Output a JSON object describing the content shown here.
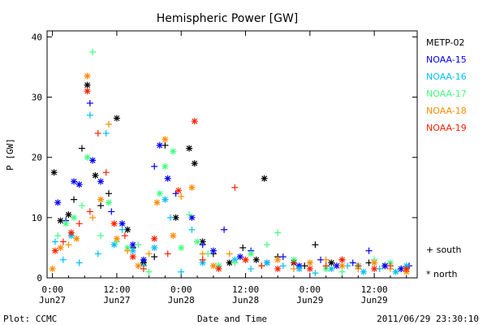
{
  "chart_data": {
    "type": "scatter",
    "title": "Hemispheric Power [GW]",
    "xlabel": "Date and Time",
    "ylabel": "P [GW]",
    "ylim": [
      0,
      41
    ],
    "xlim_hours": [
      -1,
      68
    ],
    "yticks": [
      0,
      10,
      20,
      30,
      40
    ],
    "xticks": [
      {
        "h": 0,
        "time": "0:00",
        "date": "Jun27"
      },
      {
        "h": 12,
        "time": "12:00",
        "date": "Jun27"
      },
      {
        "h": 24,
        "time": "0:00",
        "date": "Jun28"
      },
      {
        "h": 36,
        "time": "12:00",
        "date": "Jun28"
      },
      {
        "h": 48,
        "time": "0:00",
        "date": "Jun29"
      },
      {
        "h": 60,
        "time": "12:00",
        "date": "Jun29"
      }
    ],
    "marker_legend": [
      {
        "marker": "+",
        "label": "+ south"
      },
      {
        "marker": "*",
        "label": "* north"
      }
    ],
    "series": [
      {
        "name": "METP-02",
        "color": "#000000",
        "points": [
          [
            0.3,
            17.5,
            "*"
          ],
          [
            1.5,
            9.5,
            "*"
          ],
          [
            3,
            10.5,
            "*"
          ],
          [
            4,
            13,
            "+"
          ],
          [
            5.5,
            21.5,
            "+"
          ],
          [
            6.5,
            32,
            "*"
          ],
          [
            8,
            17,
            "*"
          ],
          [
            9,
            12,
            "+"
          ],
          [
            10.5,
            14,
            "+"
          ],
          [
            12,
            26.5,
            "*"
          ],
          [
            14,
            8,
            "*"
          ],
          [
            15,
            5,
            "+"
          ],
          [
            17,
            2.5,
            "*"
          ],
          [
            19,
            3.5,
            "+"
          ],
          [
            21,
            22,
            "+"
          ],
          [
            23,
            10,
            "*"
          ],
          [
            25.5,
            21.5,
            "*"
          ],
          [
            26.5,
            19,
            "*"
          ],
          [
            28,
            6,
            "*"
          ],
          [
            30,
            4,
            "+"
          ],
          [
            33,
            2.5,
            "*"
          ],
          [
            35.5,
            5,
            "+"
          ],
          [
            38,
            3,
            "*"
          ],
          [
            39.5,
            16.5,
            "*"
          ],
          [
            42,
            3.5,
            "+"
          ],
          [
            45,
            2.5,
            "*"
          ],
          [
            47,
            2,
            "+"
          ],
          [
            49,
            5.5,
            "+"
          ],
          [
            52,
            2.5,
            "*"
          ],
          [
            54,
            3,
            "+"
          ],
          [
            57,
            2,
            "*"
          ],
          [
            59,
            2.5,
            "+"
          ],
          [
            62,
            2,
            "*"
          ],
          [
            65,
            1.5,
            "+"
          ]
        ]
      },
      {
        "name": "NOAA-15",
        "color": "#0000ff",
        "points": [
          [
            1,
            12.5,
            "*"
          ],
          [
            2.5,
            9.5,
            "+"
          ],
          [
            4,
            16,
            "*"
          ],
          [
            5,
            15.5,
            "*"
          ],
          [
            7,
            29,
            "+"
          ],
          [
            7.5,
            19.5,
            "*"
          ],
          [
            9,
            16,
            "*"
          ],
          [
            11,
            11,
            "+"
          ],
          [
            13,
            9,
            "*"
          ],
          [
            15,
            5.5,
            "*"
          ],
          [
            17,
            3,
            "*"
          ],
          [
            19,
            18.5,
            "+"
          ],
          [
            20,
            22,
            "*"
          ],
          [
            21.5,
            16.5,
            "*"
          ],
          [
            23,
            14,
            "+"
          ],
          [
            26,
            10,
            "*"
          ],
          [
            28,
            5.5,
            "+"
          ],
          [
            30,
            4.5,
            "*"
          ],
          [
            32,
            8,
            "+"
          ],
          [
            35,
            3.5,
            "*"
          ],
          [
            37,
            4.5,
            "+"
          ],
          [
            40,
            2.5,
            "*"
          ],
          [
            43,
            3.5,
            "+"
          ],
          [
            46,
            2,
            "*"
          ],
          [
            50,
            3,
            "+"
          ],
          [
            53,
            2,
            "*"
          ],
          [
            56,
            2.5,
            "+"
          ],
          [
            59,
            4.5,
            "+"
          ],
          [
            62,
            2,
            "*"
          ],
          [
            65,
            1.5,
            "*"
          ],
          [
            66.5,
            2,
            "+"
          ]
        ]
      },
      {
        "name": "NOAA-16",
        "color": "#00c0ff",
        "points": [
          [
            0.5,
            6,
            "+"
          ],
          [
            2,
            3,
            "+"
          ],
          [
            3.5,
            7,
            "*"
          ],
          [
            5,
            2.5,
            "+"
          ],
          [
            7,
            27,
            "+"
          ],
          [
            8.5,
            4,
            "+"
          ],
          [
            10,
            24,
            "+"
          ],
          [
            11.5,
            5.5,
            "*"
          ],
          [
            13,
            8,
            "+"
          ],
          [
            15,
            4.5,
            "*"
          ],
          [
            17,
            2,
            "+"
          ],
          [
            19,
            5,
            "*"
          ],
          [
            21,
            13,
            "*"
          ],
          [
            22,
            10,
            "+"
          ],
          [
            24,
            1,
            "+"
          ],
          [
            26,
            8,
            "+"
          ],
          [
            28,
            2.5,
            "*"
          ],
          [
            31,
            2,
            "+"
          ],
          [
            34,
            3,
            "*"
          ],
          [
            37,
            1.5,
            "+"
          ],
          [
            40,
            2.5,
            "*"
          ],
          [
            43,
            2,
            "+"
          ],
          [
            46,
            1.5,
            "*"
          ],
          [
            49,
            0.8,
            "+"
          ],
          [
            52,
            1.5,
            "*"
          ],
          [
            55,
            2,
            "+"
          ],
          [
            58,
            1,
            "*"
          ],
          [
            61,
            1.5,
            "+"
          ],
          [
            64,
            1,
            "*"
          ],
          [
            66,
            2,
            "*"
          ]
        ]
      },
      {
        "name": "NOAA-17",
        "color": "#40ff80",
        "points": [
          [
            1,
            7,
            "+"
          ],
          [
            2.5,
            9,
            "*"
          ],
          [
            4,
            10,
            "*"
          ],
          [
            5.5,
            12,
            "+"
          ],
          [
            6.5,
            20,
            "*"
          ],
          [
            7.5,
            37.5,
            "+"
          ],
          [
            9,
            7,
            "+"
          ],
          [
            10.5,
            12.5,
            "*"
          ],
          [
            12,
            6,
            "+"
          ],
          [
            14,
            5,
            "*"
          ],
          [
            16,
            5.5,
            "+"
          ],
          [
            18,
            1,
            "+"
          ],
          [
            20,
            14,
            "*"
          ],
          [
            21,
            18.5,
            "*"
          ],
          [
            22.5,
            21,
            "*"
          ],
          [
            24,
            5,
            "*"
          ],
          [
            25.5,
            10.5,
            "+"
          ],
          [
            27,
            6,
            "*"
          ],
          [
            29,
            4,
            "+"
          ],
          [
            31,
            2,
            "*"
          ],
          [
            34,
            2.5,
            "+"
          ],
          [
            37,
            4,
            "*"
          ],
          [
            40,
            5.5,
            "+"
          ],
          [
            42,
            7.5,
            "+"
          ],
          [
            45,
            3,
            "*"
          ],
          [
            48,
            2.5,
            "+"
          ],
          [
            51,
            1.5,
            "*"
          ],
          [
            54,
            1,
            "+"
          ],
          [
            57,
            2,
            "*"
          ],
          [
            60,
            3,
            "+"
          ],
          [
            63,
            2.5,
            "*"
          ],
          [
            66,
            1.5,
            "+"
          ]
        ]
      },
      {
        "name": "NOAA-18",
        "color": "#ff8c00",
        "points": [
          [
            0,
            1.5,
            "*"
          ],
          [
            1.5,
            5,
            "*"
          ],
          [
            3,
            5.5,
            "+"
          ],
          [
            4.5,
            6.5,
            "*"
          ],
          [
            6.5,
            33.5,
            "*"
          ],
          [
            7.5,
            10,
            "+"
          ],
          [
            9,
            13,
            "*"
          ],
          [
            10.5,
            25.5,
            "+"
          ],
          [
            12,
            6.5,
            "*"
          ],
          [
            14,
            4.5,
            "+"
          ],
          [
            16,
            2,
            "*"
          ],
          [
            18,
            4,
            "+"
          ],
          [
            19.5,
            12.5,
            "*"
          ],
          [
            21,
            23,
            "*"
          ],
          [
            22.5,
            7,
            "*"
          ],
          [
            24,
            13.5,
            "+"
          ],
          [
            26,
            15,
            "*"
          ],
          [
            28,
            4,
            "+"
          ],
          [
            30,
            2,
            "*"
          ],
          [
            33,
            4,
            "+"
          ],
          [
            36,
            3,
            "*"
          ],
          [
            39,
            2,
            "+"
          ],
          [
            42,
            3,
            "*"
          ],
          [
            45,
            1.5,
            "+"
          ],
          [
            48,
            2.5,
            "*"
          ],
          [
            51,
            3,
            "+"
          ],
          [
            54,
            2,
            "*"
          ],
          [
            57,
            1.5,
            "+"
          ],
          [
            60,
            2.5,
            "*"
          ],
          [
            63,
            1.5,
            "+"
          ],
          [
            66,
            1,
            "*"
          ]
        ]
      },
      {
        "name": "NOAA-19",
        "color": "#ff2000",
        "points": [
          [
            0.5,
            4.5,
            "*"
          ],
          [
            2,
            6,
            "+"
          ],
          [
            3.5,
            7.5,
            "*"
          ],
          [
            5,
            9,
            "+"
          ],
          [
            6.5,
            31,
            "*"
          ],
          [
            7,
            11,
            "+"
          ],
          [
            8.5,
            24,
            "+"
          ],
          [
            10,
            17.5,
            "+"
          ],
          [
            11.5,
            9,
            "*"
          ],
          [
            13.5,
            7,
            "+"
          ],
          [
            15,
            3.5,
            "*"
          ],
          [
            17,
            1.5,
            "+"
          ],
          [
            19,
            6.5,
            "*"
          ],
          [
            21.5,
            4,
            "+"
          ],
          [
            23.5,
            14.5,
            "*"
          ],
          [
            26.5,
            26,
            "*"
          ],
          [
            28,
            3,
            "+"
          ],
          [
            31,
            1.5,
            "*"
          ],
          [
            34,
            15,
            "+"
          ],
          [
            36,
            3,
            "*"
          ],
          [
            39,
            2,
            "+"
          ],
          [
            42,
            1.5,
            "*"
          ],
          [
            45,
            2.5,
            "+"
          ],
          [
            48,
            1.5,
            "*"
          ],
          [
            51,
            2,
            "+"
          ],
          [
            54,
            3,
            "*"
          ],
          [
            57,
            2,
            "+"
          ],
          [
            60,
            1.5,
            "*"
          ],
          [
            63,
            2,
            "+"
          ],
          [
            66,
            1.5,
            "*"
          ]
        ]
      }
    ]
  },
  "footer": {
    "plot_credit": "Plot: CCMC",
    "timestamp": "2011/06/29 23:30:10"
  }
}
